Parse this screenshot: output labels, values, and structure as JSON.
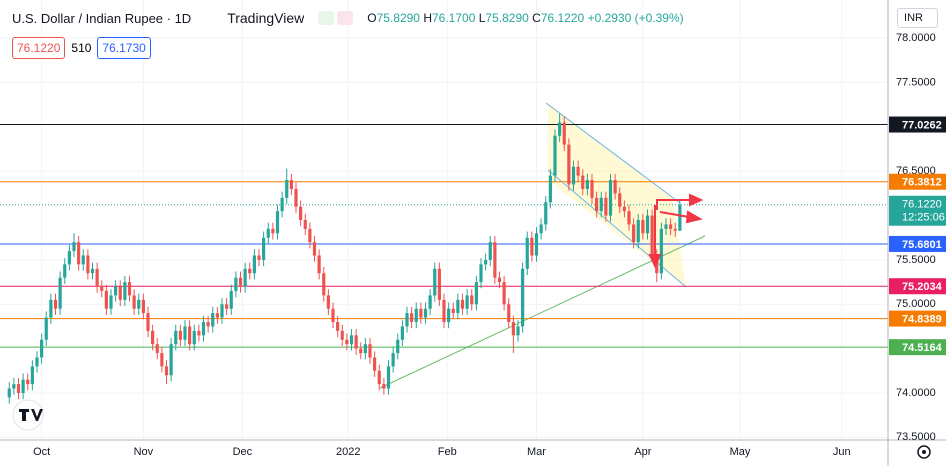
{
  "header": {
    "symbol": "U.S. Dollar / Indian Rupee · 1D",
    "brand": "TradingView",
    "ohlc": [
      [
        "O",
        "75.8290"
      ],
      [
        "H",
        "76.1700"
      ],
      [
        "L",
        "75.8290"
      ],
      [
        "C",
        "76.1220"
      ]
    ],
    "change": "+0.2930 (+0.39%)",
    "bid": "76.1220",
    "spread": "510",
    "ask": "76.1730",
    "currency": "INR"
  },
  "chart_data": {
    "type": "candlestick",
    "candles": [
      [
        73.95,
        74.12,
        73.88,
        74.05
      ],
      [
        74.05,
        74.17,
        73.98,
        74.1
      ],
      [
        74.1,
        74.17,
        73.93,
        74.0
      ],
      [
        74.0,
        74.22,
        73.93,
        74.15
      ],
      [
        74.15,
        74.22,
        74.03,
        74.1
      ],
      [
        74.1,
        74.37,
        74.03,
        74.3
      ],
      [
        74.3,
        74.47,
        74.23,
        74.4
      ],
      [
        74.4,
        74.67,
        74.33,
        74.6
      ],
      [
        74.6,
        74.92,
        74.53,
        74.85
      ],
      [
        74.85,
        75.12,
        74.78,
        75.05
      ],
      [
        75.05,
        75.12,
        74.88,
        74.95
      ],
      [
        74.95,
        75.37,
        74.88,
        75.3
      ],
      [
        75.3,
        75.52,
        75.23,
        75.45
      ],
      [
        75.45,
        75.67,
        75.38,
        75.6
      ],
      [
        75.6,
        75.8,
        75.53,
        75.7
      ],
      [
        75.7,
        75.77,
        75.38,
        75.45
      ],
      [
        75.45,
        75.62,
        75.38,
        75.55
      ],
      [
        75.55,
        75.62,
        75.28,
        75.35
      ],
      [
        75.35,
        75.47,
        75.28,
        75.4
      ],
      [
        75.4,
        75.47,
        75.13,
        75.2
      ],
      [
        75.2,
        75.27,
        75.08,
        75.15
      ],
      [
        75.15,
        75.22,
        74.88,
        74.95
      ],
      [
        74.95,
        75.17,
        74.88,
        75.1
      ],
      [
        75.1,
        75.27,
        75.03,
        75.2
      ],
      [
        75.2,
        75.27,
        74.98,
        75.05
      ],
      [
        75.05,
        75.32,
        74.98,
        75.25
      ],
      [
        75.25,
        75.32,
        75.03,
        75.1
      ],
      [
        75.1,
        75.17,
        74.88,
        74.95
      ],
      [
        74.95,
        75.12,
        74.88,
        75.05
      ],
      [
        75.05,
        75.12,
        74.83,
        74.9
      ],
      [
        74.9,
        74.97,
        74.63,
        74.7
      ],
      [
        74.7,
        74.77,
        74.48,
        74.55
      ],
      [
        74.55,
        74.62,
        74.38,
        74.45
      ],
      [
        74.45,
        74.52,
        74.23,
        74.3
      ],
      [
        74.3,
        74.37,
        74.1,
        74.2
      ],
      [
        74.2,
        74.62,
        74.13,
        74.55
      ],
      [
        74.55,
        74.77,
        74.48,
        74.7
      ],
      [
        74.7,
        74.77,
        74.53,
        74.6
      ],
      [
        74.6,
        74.82,
        74.53,
        74.75
      ],
      [
        74.75,
        74.82,
        74.48,
        74.55
      ],
      [
        74.55,
        74.77,
        74.48,
        74.7
      ],
      [
        74.7,
        74.77,
        74.58,
        74.65
      ],
      [
        74.65,
        74.87,
        74.58,
        74.8
      ],
      [
        74.8,
        74.87,
        74.68,
        74.75
      ],
      [
        74.75,
        74.97,
        74.68,
        74.9
      ],
      [
        74.9,
        74.97,
        74.78,
        74.85
      ],
      [
        74.85,
        75.07,
        74.78,
        75.0
      ],
      [
        75.0,
        75.07,
        74.88,
        74.95
      ],
      [
        74.95,
        75.22,
        74.88,
        75.15
      ],
      [
        75.15,
        75.37,
        75.08,
        75.3
      ],
      [
        75.3,
        75.37,
        75.13,
        75.2
      ],
      [
        75.2,
        75.47,
        75.13,
        75.4
      ],
      [
        75.4,
        75.47,
        75.28,
        75.35
      ],
      [
        75.35,
        75.62,
        75.28,
        75.55
      ],
      [
        75.55,
        75.62,
        75.43,
        75.5
      ],
      [
        75.5,
        75.82,
        75.43,
        75.75
      ],
      [
        75.75,
        75.92,
        75.68,
        75.85
      ],
      [
        75.85,
        75.92,
        75.73,
        75.8
      ],
      [
        75.8,
        76.12,
        75.73,
        76.05
      ],
      [
        76.05,
        76.27,
        75.98,
        76.2
      ],
      [
        76.2,
        76.53,
        76.13,
        76.4
      ],
      [
        76.4,
        76.47,
        76.23,
        76.3
      ],
      [
        76.3,
        76.37,
        76.03,
        76.1
      ],
      [
        76.1,
        76.17,
        75.88,
        75.95
      ],
      [
        75.95,
        76.02,
        75.78,
        75.85
      ],
      [
        75.85,
        75.92,
        75.63,
        75.7
      ],
      [
        75.7,
        75.77,
        75.48,
        75.55
      ],
      [
        75.55,
        75.62,
        75.28,
        75.35
      ],
      [
        75.35,
        75.42,
        75.03,
        75.1
      ],
      [
        75.1,
        75.17,
        74.88,
        74.95
      ],
      [
        74.95,
        75.02,
        74.73,
        74.8
      ],
      [
        74.8,
        74.87,
        74.63,
        74.7
      ],
      [
        74.7,
        74.77,
        74.53,
        74.6
      ],
      [
        74.6,
        74.67,
        74.48,
        74.55
      ],
      [
        74.55,
        74.72,
        74.48,
        74.65
      ],
      [
        74.65,
        74.72,
        74.43,
        74.5
      ],
      [
        74.5,
        74.57,
        74.38,
        74.45
      ],
      [
        74.45,
        74.62,
        74.38,
        74.55
      ],
      [
        74.55,
        74.62,
        74.33,
        74.4
      ],
      [
        74.4,
        74.47,
        74.18,
        74.25
      ],
      [
        74.25,
        74.32,
        74.03,
        74.1
      ],
      [
        74.1,
        74.17,
        73.98,
        74.05
      ],
      [
        74.05,
        74.37,
        73.98,
        74.3
      ],
      [
        74.3,
        74.52,
        74.23,
        74.45
      ],
      [
        74.45,
        74.67,
        74.38,
        74.6
      ],
      [
        74.6,
        74.82,
        74.53,
        74.75
      ],
      [
        74.75,
        74.97,
        74.68,
        74.9
      ],
      [
        74.9,
        74.97,
        74.73,
        74.8
      ],
      [
        74.8,
        75.02,
        74.73,
        74.95
      ],
      [
        74.95,
        75.02,
        74.78,
        74.85
      ],
      [
        74.85,
        75.02,
        74.78,
        74.95
      ],
      [
        74.95,
        75.17,
        74.88,
        75.1
      ],
      [
        75.1,
        75.47,
        75.03,
        75.4
      ],
      [
        75.4,
        75.47,
        74.98,
        75.05
      ],
      [
        75.05,
        75.12,
        74.73,
        74.8
      ],
      [
        74.8,
        75.02,
        74.73,
        74.95
      ],
      [
        74.95,
        75.02,
        74.83,
        74.9
      ],
      [
        74.9,
        75.12,
        74.83,
        75.05
      ],
      [
        75.05,
        75.12,
        74.88,
        74.95
      ],
      [
        74.95,
        75.17,
        74.88,
        75.1
      ],
      [
        75.1,
        75.17,
        74.93,
        75.0
      ],
      [
        75.0,
        75.32,
        74.93,
        75.25
      ],
      [
        75.25,
        75.52,
        75.18,
        75.45
      ],
      [
        75.45,
        75.57,
        75.38,
        75.5
      ],
      [
        75.5,
        75.77,
        75.43,
        75.7
      ],
      [
        75.7,
        75.77,
        75.23,
        75.3
      ],
      [
        75.3,
        75.37,
        75.18,
        75.25
      ],
      [
        75.25,
        75.32,
        74.93,
        75.0
      ],
      [
        75.0,
        75.07,
        74.73,
        74.8
      ],
      [
        74.8,
        74.87,
        74.45,
        74.65
      ],
      [
        74.65,
        74.82,
        74.58,
        74.75
      ],
      [
        74.75,
        75.47,
        74.68,
        75.4
      ],
      [
        75.4,
        75.82,
        75.33,
        75.75
      ],
      [
        75.75,
        75.82,
        75.48,
        75.55
      ],
      [
        75.55,
        75.87,
        75.48,
        75.8
      ],
      [
        75.8,
        75.97,
        75.73,
        75.9
      ],
      [
        75.9,
        76.22,
        75.83,
        76.15
      ],
      [
        76.15,
        76.52,
        76.08,
        76.45
      ],
      [
        76.45,
        76.97,
        76.38,
        76.9
      ],
      [
        76.9,
        77.15,
        76.83,
        77.05
      ],
      [
        77.05,
        77.12,
        76.73,
        76.8
      ],
      [
        76.8,
        76.87,
        76.28,
        76.35
      ],
      [
        76.35,
        76.62,
        76.28,
        76.55
      ],
      [
        76.55,
        76.62,
        76.38,
        76.45
      ],
      [
        76.45,
        76.52,
        76.23,
        76.3
      ],
      [
        76.3,
        76.47,
        76.23,
        76.4
      ],
      [
        76.4,
        76.47,
        76.13,
        76.2
      ],
      [
        76.2,
        76.27,
        75.98,
        76.05
      ],
      [
        76.05,
        76.27,
        75.98,
        76.2
      ],
      [
        76.2,
        76.27,
        75.93,
        76.0
      ],
      [
        76.0,
        76.47,
        75.93,
        76.4
      ],
      [
        76.4,
        76.47,
        76.18,
        76.25
      ],
      [
        76.25,
        76.32,
        76.03,
        76.1
      ],
      [
        76.1,
        76.17,
        75.98,
        76.05
      ],
      [
        76.05,
        76.12,
        75.83,
        75.9
      ],
      [
        75.9,
        75.97,
        75.63,
        75.7
      ],
      [
        75.7,
        76.02,
        75.63,
        75.95
      ],
      [
        75.95,
        76.02,
        75.73,
        75.8
      ],
      [
        75.8,
        76.07,
        75.73,
        76.0
      ],
      [
        76.0,
        76.07,
        75.48,
        75.55
      ],
      [
        75.55,
        75.62,
        75.25,
        75.35
      ],
      [
        75.35,
        75.92,
        75.28,
        75.85
      ],
      [
        75.85,
        75.97,
        75.78,
        75.9
      ],
      [
        75.9,
        75.97,
        75.78,
        75.85
      ],
      [
        75.85,
        75.92,
        75.76,
        75.83
      ],
      [
        75.829,
        76.17,
        75.829,
        76.122
      ]
    ],
    "xlim": [
      -2,
      190
    ],
    "xticks": [
      {
        "value": 7,
        "label": "Oct"
      },
      {
        "value": 29,
        "label": "Nov"
      },
      {
        "value": 50.4,
        "label": "Dec"
      },
      {
        "value": 73.3,
        "label": "2022"
      },
      {
        "value": 94.7,
        "label": "Feb"
      },
      {
        "value": 114,
        "label": "Mar"
      },
      {
        "value": 137,
        "label": "Apr"
      },
      {
        "value": 158,
        "label": "May"
      },
      {
        "value": 180,
        "label": "Jun"
      }
    ],
    "ylim": [
      73.47,
      78.43
    ],
    "yticks": [
      {
        "value": 73.5,
        "label": "73.5000"
      },
      {
        "value": 74,
        "label": "74.0000"
      },
      {
        "value": 75,
        "label": "75.0000"
      },
      {
        "value": 75.5,
        "label": "75.5000"
      },
      {
        "value": 76.5,
        "label": "76.5000"
      },
      {
        "value": 77.5,
        "label": "77.5000"
      },
      {
        "value": 78,
        "label": "78.0000"
      }
    ],
    "levels": [
      {
        "value": 77.0262,
        "color": "#131722"
      },
      {
        "value": 76.3812,
        "color": "#f57c00"
      },
      {
        "value": 75.6801,
        "color": "#2962ff"
      },
      {
        "value": 75.2034,
        "color": "#e91e63"
      },
      {
        "value": 74.8389,
        "color": "#f57c00"
      },
      {
        "value": 74.5164,
        "color": "#4caf50"
      }
    ],
    "last_price": {
      "value": 76.122,
      "label": "76.1220"
    },
    "countdown": "12:25:06",
    "up_color": "#26a69a",
    "down_color": "#ef5350"
  }
}
